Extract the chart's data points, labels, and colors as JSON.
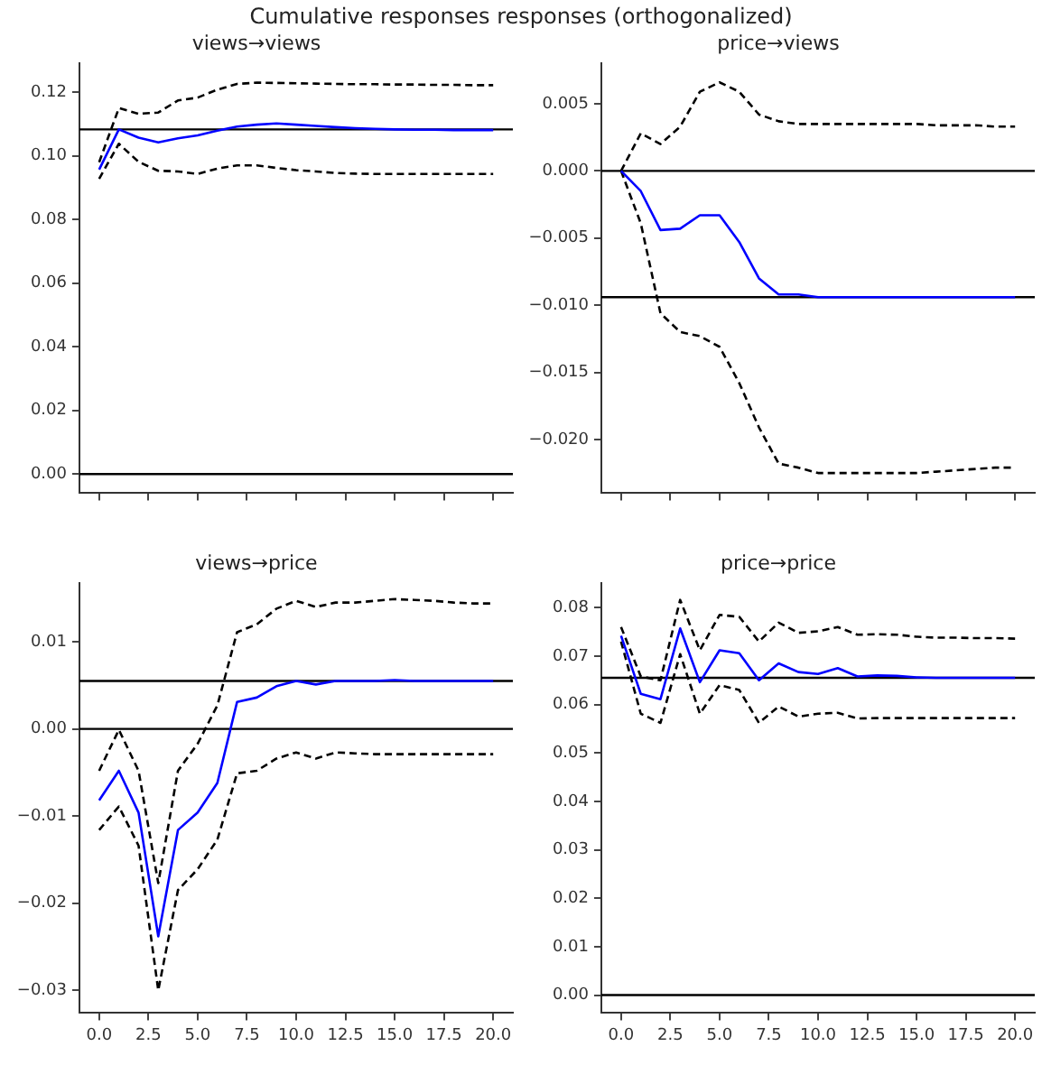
{
  "chart_data": [
    {
      "type": "other",
      "title": "Cumulative responses responses (orthogonalized)"
    },
    {
      "type": "line",
      "title": "views→views",
      "x": [
        0,
        1,
        2,
        3,
        4,
        5,
        6,
        7,
        8,
        9,
        10,
        11,
        12,
        13,
        14,
        15,
        16,
        17,
        18,
        19,
        20
      ],
      "xlim": [
        -1,
        21
      ],
      "xticks": [
        {
          "value": 0,
          "label": null
        },
        {
          "value": 2.5,
          "label": null
        },
        {
          "value": 5,
          "label": null
        },
        {
          "value": 7.5,
          "label": null
        },
        {
          "value": 10,
          "label": null
        },
        {
          "value": 12.5,
          "label": null
        },
        {
          "value": 15,
          "label": null
        },
        {
          "value": 17.5,
          "label": null
        },
        {
          "value": 20,
          "label": null
        }
      ],
      "ylim": [
        -0.006,
        0.129
      ],
      "yticks": [
        {
          "value": 0,
          "label": "0.00"
        },
        {
          "value": 0.02,
          "label": "0.02"
        },
        {
          "value": 0.04,
          "label": "0.04"
        },
        {
          "value": 0.06,
          "label": "0.06"
        },
        {
          "value": 0.08,
          "label": "0.08"
        },
        {
          "value": 0.1,
          "label": "0.10"
        },
        {
          "value": 0.12,
          "label": "0.12"
        }
      ],
      "tick_labels": "y",
      "grid": false,
      "legend": false,
      "marker": "none",
      "series": [
        {
          "color": "#0000ff",
          "line_style": "solid",
          "values": [
            0.0957,
            0.1083,
            0.1057,
            0.1042,
            0.1055,
            0.1064,
            0.1079,
            0.1092,
            0.1098,
            0.1102,
            0.1098,
            0.1094,
            0.109,
            0.1087,
            0.1085,
            0.1083,
            0.1082,
            0.1082,
            0.1081,
            0.1081,
            0.1081
          ]
        },
        {
          "color": "#000000",
          "line_style": "dashed",
          "values": [
            0.098,
            0.115,
            0.1132,
            0.1136,
            0.1174,
            0.1183,
            0.1208,
            0.1226,
            0.123,
            0.1229,
            0.1228,
            0.1227,
            0.1226,
            0.1225,
            0.1225,
            0.1224,
            0.1224,
            0.1223,
            0.1223,
            0.1222,
            0.1222
          ]
        },
        {
          "color": "#000000",
          "line_style": "dashed",
          "values": [
            0.0928,
            0.1038,
            0.0981,
            0.0953,
            0.0951,
            0.0943,
            0.096,
            0.097,
            0.097,
            0.0962,
            0.0955,
            0.0951,
            0.0946,
            0.0944,
            0.0943,
            0.0943,
            0.0943,
            0.0943,
            0.0943,
            0.0943,
            0.0943
          ]
        }
      ],
      "ref_lines": [
        {
          "axis": "y",
          "value": 0,
          "color": "#000000"
        },
        {
          "axis": "y",
          "value": 0.1083,
          "color": "#000000"
        }
      ]
    },
    {
      "type": "line",
      "title": "price→views",
      "x": [
        0,
        1,
        2,
        3,
        4,
        5,
        6,
        7,
        8,
        9,
        10,
        11,
        12,
        13,
        14,
        15,
        16,
        17,
        18,
        19,
        20
      ],
      "xlim": [
        -1,
        21
      ],
      "xticks": [
        {
          "value": 0,
          "label": null
        },
        {
          "value": 2.5,
          "label": null
        },
        {
          "value": 5,
          "label": null
        },
        {
          "value": 7.5,
          "label": null
        },
        {
          "value": 10,
          "label": null
        },
        {
          "value": 12.5,
          "label": null
        },
        {
          "value": 15,
          "label": null
        },
        {
          "value": 17.5,
          "label": null
        },
        {
          "value": 20,
          "label": null
        }
      ],
      "ylim": [
        -0.024,
        0.008
      ],
      "yticks": [
        {
          "value": -0.02,
          "label": "−0.020"
        },
        {
          "value": -0.015,
          "label": "−0.015"
        },
        {
          "value": -0.01,
          "label": "−0.010"
        },
        {
          "value": -0.005,
          "label": "−0.005"
        },
        {
          "value": 0,
          "label": "0.000"
        },
        {
          "value": 0.005,
          "label": "0.005"
        }
      ],
      "tick_labels": "y",
      "grid": false,
      "legend": false,
      "marker": "none",
      "series": [
        {
          "color": "#0000ff",
          "line_style": "solid",
          "values": [
            0,
            -0.0015,
            -0.0044,
            -0.0043,
            -0.0033,
            -0.0033,
            -0.0053,
            -0.008,
            -0.0092,
            -0.0092,
            -0.0094,
            -0.0094,
            -0.0094,
            -0.0094,
            -0.0094,
            -0.0094,
            -0.0094,
            -0.0094,
            -0.0094,
            -0.0094,
            -0.0094
          ]
        },
        {
          "color": "#000000",
          "line_style": "dashed",
          "values": [
            0,
            0.0028,
            0.002,
            0.0033,
            0.0059,
            0.0066,
            0.0059,
            0.0042,
            0.0037,
            0.0035,
            0.0035,
            0.0035,
            0.0035,
            0.0035,
            0.0035,
            0.0035,
            0.0034,
            0.0034,
            0.0034,
            0.0033,
            0.0033
          ]
        },
        {
          "color": "#000000",
          "line_style": "dashed",
          "values": [
            0,
            -0.0039,
            -0.0106,
            -0.012,
            -0.0123,
            -0.0131,
            -0.0158,
            -0.0191,
            -0.0218,
            -0.0221,
            -0.0225,
            -0.0225,
            -0.0225,
            -0.0225,
            -0.0225,
            -0.0225,
            -0.0224,
            -0.0223,
            -0.0222,
            -0.0221,
            -0.0221
          ]
        }
      ],
      "ref_lines": [
        {
          "axis": "y",
          "value": 0,
          "color": "#000000"
        },
        {
          "axis": "y",
          "value": -0.0094,
          "color": "#000000"
        }
      ]
    },
    {
      "type": "line",
      "title": "views→price",
      "x": [
        0,
        1,
        2,
        3,
        4,
        5,
        6,
        7,
        8,
        9,
        10,
        11,
        12,
        13,
        14,
        15,
        16,
        17,
        18,
        19,
        20
      ],
      "xlim": [
        -1,
        21
      ],
      "xticks": [
        {
          "value": 0,
          "label": "0.0"
        },
        {
          "value": 2.5,
          "label": "2.5"
        },
        {
          "value": 5,
          "label": "5.0"
        },
        {
          "value": 7.5,
          "label": "7.5"
        },
        {
          "value": 10,
          "label": "10.0"
        },
        {
          "value": 12.5,
          "label": "12.5"
        },
        {
          "value": 15,
          "label": "15.0"
        },
        {
          "value": 17.5,
          "label": "17.5"
        },
        {
          "value": 20,
          "label": "20.0"
        }
      ],
      "ylim": [
        -0.0326,
        0.0167
      ],
      "yticks": [
        {
          "value": -0.03,
          "label": "−0.03"
        },
        {
          "value": -0.02,
          "label": "−0.02"
        },
        {
          "value": -0.01,
          "label": "−0.01"
        },
        {
          "value": 0,
          "label": "0.00"
        },
        {
          "value": 0.01,
          "label": "0.01"
        }
      ],
      "grid": false,
      "legend": false,
      "marker": "none",
      "series": [
        {
          "color": "#0000ff",
          "line_style": "solid",
          "values": [
            -0.0082,
            -0.0048,
            -0.0096,
            -0.0238,
            -0.0116,
            -0.0096,
            -0.0062,
            0.0031,
            0.0036,
            0.0049,
            0.0055,
            0.0051,
            0.0055,
            0.0055,
            0.0055,
            0.0056,
            0.0055,
            0.0055,
            0.0055,
            0.0055,
            0.0055
          ]
        },
        {
          "color": "#000000",
          "line_style": "dashed",
          "values": [
            -0.0048,
            -0.0001,
            -0.0048,
            -0.0177,
            -0.0048,
            -0.0017,
            0.0027,
            0.0111,
            0.012,
            0.0138,
            0.0147,
            0.014,
            0.0145,
            0.0145,
            0.0147,
            0.0149,
            0.0148,
            0.0147,
            0.0145,
            0.0144,
            0.0144
          ]
        },
        {
          "color": "#000000",
          "line_style": "dashed",
          "values": [
            -0.0116,
            -0.0089,
            -0.0134,
            -0.03,
            -0.0185,
            -0.0161,
            -0.0127,
            -0.0051,
            -0.0048,
            -0.0034,
            -0.0027,
            -0.0034,
            -0.0027,
            -0.0028,
            -0.0029,
            -0.0029,
            -0.0029,
            -0.0029,
            -0.0029,
            -0.0029,
            -0.0029
          ]
        }
      ],
      "ref_lines": [
        {
          "axis": "y",
          "value": 0,
          "color": "#000000"
        },
        {
          "axis": "y",
          "value": 0.0055,
          "color": "#000000"
        }
      ]
    },
    {
      "type": "line",
      "title": "price→price",
      "x": [
        0,
        1,
        2,
        3,
        4,
        5,
        6,
        7,
        8,
        9,
        10,
        11,
        12,
        13,
        14,
        15,
        16,
        17,
        18,
        19,
        20
      ],
      "xlim": [
        -1,
        21
      ],
      "xticks": [
        {
          "value": 0,
          "label": "0.0"
        },
        {
          "value": 2.5,
          "label": "2.5"
        },
        {
          "value": 5,
          "label": "5.0"
        },
        {
          "value": 7.5,
          "label": "7.5"
        },
        {
          "value": 10,
          "label": "10.0"
        },
        {
          "value": 12.5,
          "label": "12.5"
        },
        {
          "value": 15,
          "label": "15.0"
        },
        {
          "value": 17.5,
          "label": "17.5"
        },
        {
          "value": 20,
          "label": "20.0"
        }
      ],
      "ylim": [
        -0.0037,
        0.085
      ],
      "yticks": [
        {
          "value": 0,
          "label": "0.00"
        },
        {
          "value": 0.01,
          "label": "0.01"
        },
        {
          "value": 0.02,
          "label": "0.02"
        },
        {
          "value": 0.03,
          "label": "0.03"
        },
        {
          "value": 0.04,
          "label": "0.04"
        },
        {
          "value": 0.05,
          "label": "0.05"
        },
        {
          "value": 0.06,
          "label": "0.06"
        },
        {
          "value": 0.07,
          "label": "0.07"
        },
        {
          "value": 0.08,
          "label": "0.08"
        }
      ],
      "grid": false,
      "legend": false,
      "marker": "none",
      "series": [
        {
          "color": "#0000ff",
          "line_style": "solid",
          "values": [
            0.0742,
            0.0622,
            0.0611,
            0.0757,
            0.0646,
            0.0712,
            0.0706,
            0.065,
            0.0685,
            0.0667,
            0.0663,
            0.0675,
            0.0658,
            0.066,
            0.0659,
            0.0656,
            0.0655,
            0.0655,
            0.0655,
            0.0655,
            0.0655
          ]
        },
        {
          "color": "#000000",
          "line_style": "dashed",
          "values": [
            0.076,
            0.0658,
            0.065,
            0.0816,
            0.0712,
            0.0785,
            0.0781,
            0.073,
            0.0769,
            0.0748,
            0.0751,
            0.076,
            0.0744,
            0.0745,
            0.0744,
            0.074,
            0.0738,
            0.0738,
            0.0737,
            0.0737,
            0.0736
          ]
        },
        {
          "color": "#000000",
          "line_style": "dashed",
          "values": [
            0.073,
            0.0581,
            0.0562,
            0.0704,
            0.0581,
            0.064,
            0.063,
            0.0562,
            0.0596,
            0.0575,
            0.0581,
            0.0583,
            0.0571,
            0.0572,
            0.0572,
            0.0572,
            0.0572,
            0.0572,
            0.0572,
            0.0572,
            0.0572
          ]
        }
      ],
      "ref_lines": [
        {
          "axis": "y",
          "value": 0,
          "color": "#000000"
        },
        {
          "axis": "y",
          "value": 0.0655,
          "color": "#000000"
        }
      ]
    }
  ]
}
